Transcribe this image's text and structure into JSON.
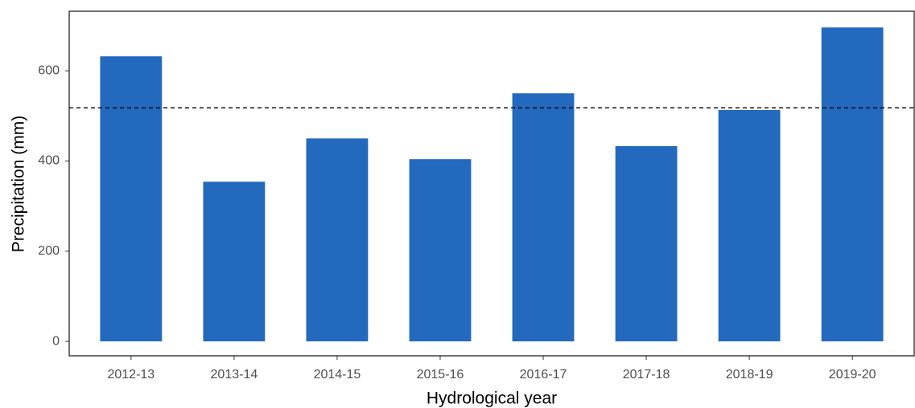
{
  "chart_data": {
    "type": "bar",
    "x_label": "Hydrological year",
    "y_label": "Precipitation (mm)",
    "categories": [
      "2012-13",
      "2013-14",
      "2014-15",
      "2015-16",
      "2016-17",
      "2017-18",
      "2018-19",
      "2019-20"
    ],
    "values": [
      632,
      354,
      450,
      404,
      550,
      433,
      513,
      696
    ],
    "color": "#2369bd",
    "ylim": [
      -32,
      732
    ],
    "yticks": [
      0,
      200,
      400,
      600
    ],
    "reference_line": 518,
    "reference_line_style": "dashed",
    "grid": false
  }
}
